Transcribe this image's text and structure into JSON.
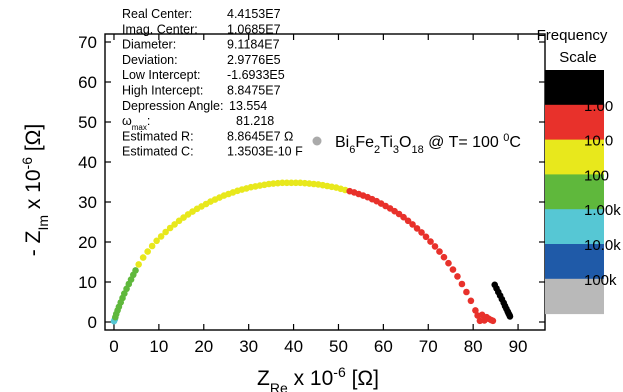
{
  "chart_data": {
    "type": "scatter",
    "x_axis": {
      "label_main": "Z",
      "label_sub": "Re",
      "label_mult": "x 10",
      "label_exp": "-6",
      "unit": "[Ω]",
      "range": [
        -2,
        96
      ],
      "ticks": [
        0,
        10,
        20,
        30,
        40,
        50,
        60,
        70,
        80,
        90
      ]
    },
    "y_axis": {
      "label_prefix": "- Z",
      "label_sub": "Im",
      "label_mult": "x 10",
      "label_exp": "-6",
      "unit": "[Ω]",
      "range": [
        -2,
        72
      ],
      "ticks": [
        0,
        10,
        20,
        30,
        40,
        50,
        60,
        70
      ]
    },
    "fit_parameters": [
      {
        "label": "Real Center:",
        "value": "4.4153E7"
      },
      {
        "label": "Imag. Center:",
        "value": "1.0685E7"
      },
      {
        "label": "Diameter:",
        "value": "9.1184E7"
      },
      {
        "label": "Deviation:",
        "value": "2.9776E5"
      },
      {
        "label": "Low Intercept:",
        "value": "-1.6933E5"
      },
      {
        "label": "High Intercept:",
        "value": "8.8475E7"
      },
      {
        "label": "Depression Angle:",
        "value": "13.554"
      },
      {
        "label": "ω",
        "label_sub": "max",
        "label_tail": ":",
        "value": "81.218"
      },
      {
        "label": "Estimated R:",
        "value": "8.8645E7 Ω"
      },
      {
        "label": "Estimated C:",
        "value": "1.3503E-10 F"
      }
    ],
    "legend": {
      "marker_color": "#aaaaaa",
      "label_parts": [
        "Bi",
        "6",
        "Fe",
        "2",
        "Ti",
        "3",
        "O",
        "18",
        " @ T= 100 ",
        "0",
        "C"
      ]
    },
    "frequency_scale": {
      "title_line1": "Frequency",
      "title_line2": "Scale",
      "bands": [
        {
          "color": "#000000",
          "label": ""
        },
        {
          "color": "#e8312b",
          "label": "1.00"
        },
        {
          "color": "#e8e81c",
          "label": "10.0"
        },
        {
          "color": "#5fb83c",
          "label": "100"
        },
        {
          "color": "#56c7d4",
          "label": "1.00k"
        },
        {
          "color": "#1f5aa8",
          "label": "10.0k"
        },
        {
          "color": "#b9b9b9",
          "label": "100k"
        }
      ]
    },
    "series": [
      {
        "band": "100k–1.00k",
        "color": "#56c7d4",
        "x": [
          0.0,
          0.2
        ],
        "y": [
          0.2,
          0.7
        ]
      },
      {
        "band": "1.00k–100",
        "color": "#5fb83c",
        "x": [
          0.3,
          0.5,
          0.8,
          1.1,
          1.5,
          1.9,
          2.3,
          2.8,
          3.3,
          3.8,
          4.3,
          4.8
        ],
        "y": [
          1.2,
          2.0,
          2.9,
          3.8,
          4.9,
          6.0,
          7.1,
          8.3,
          9.5,
          10.6,
          11.8,
          12.9
        ]
      },
      {
        "band": "100–10.0",
        "color": "#e8e81c",
        "x": [
          5.5,
          6.5,
          7.5,
          8.5,
          9.5,
          10.5,
          11.5,
          12.5,
          13.5,
          14.5,
          15.5,
          16.5,
          17.5,
          18.5,
          19.5,
          20.5,
          21.5,
          22.5,
          23.5,
          24.5,
          25.5,
          26.5,
          27.5,
          28.5,
          29.5,
          30.5,
          31.5,
          32.5,
          33.5,
          34.5,
          35.5,
          36.5,
          37.5,
          38.5,
          39.5,
          40.5,
          41.5,
          42.5,
          43.5,
          44.5,
          45.5,
          46.5,
          47.5,
          48.5,
          49.5,
          50.5,
          51.5
        ],
        "y": [
          14.4,
          16.1,
          17.6,
          19.0,
          20.3,
          21.4,
          22.5,
          23.5,
          24.4,
          25.3,
          26.1,
          26.9,
          27.6,
          28.3,
          28.9,
          29.5,
          30.1,
          30.6,
          31.1,
          31.6,
          32.0,
          32.4,
          32.8,
          33.1,
          33.4,
          33.7,
          33.9,
          34.1,
          34.3,
          34.5,
          34.6,
          34.7,
          34.8,
          34.8,
          34.8,
          34.8,
          34.8,
          34.7,
          34.6,
          34.5,
          34.4,
          34.2,
          34.0,
          33.8,
          33.6,
          33.3,
          33.0
        ]
      },
      {
        "band": "10.0–1.00",
        "color": "#e8312b",
        "x": [
          52.5,
          53.5,
          54.5,
          55.5,
          56.5,
          57.5,
          58.5,
          59.5,
          60.5,
          61.5,
          62.5,
          63.5,
          64.5,
          65.5,
          66.5,
          67.5,
          68.5,
          69.5,
          70.5,
          71.5,
          72.5,
          73.5,
          74.5,
          75.5,
          76.5,
          77.5,
          78.5,
          79.5,
          80.5,
          81.0,
          81.5,
          82.0,
          82.5,
          83.0,
          83.5,
          84.0,
          84.4
        ],
        "y": [
          32.7,
          32.4,
          32.0,
          31.6,
          31.2,
          30.7,
          30.2,
          29.6,
          29.0,
          28.4,
          27.7,
          27.0,
          26.2,
          25.3,
          24.4,
          23.4,
          22.4,
          21.3,
          20.1,
          18.9,
          17.6,
          16.2,
          14.7,
          13.1,
          11.4,
          9.5,
          7.5,
          5.3,
          2.9,
          1.6,
          0.3,
          1.8,
          0.4,
          1.2,
          0.8,
          0.5,
          0.3
        ]
      },
      {
        "band": "1.00–",
        "color": "#000000",
        "x": [
          84.8,
          85.2,
          85.6,
          86.0,
          86.4,
          86.8,
          87.1,
          87.4,
          87.7,
          87.9,
          88.1,
          88.2
        ],
        "y": [
          9.3,
          8.4,
          7.5,
          6.6,
          5.7,
          4.8,
          4.0,
          3.3,
          2.6,
          2.1,
          1.7,
          1.4
        ]
      }
    ]
  }
}
